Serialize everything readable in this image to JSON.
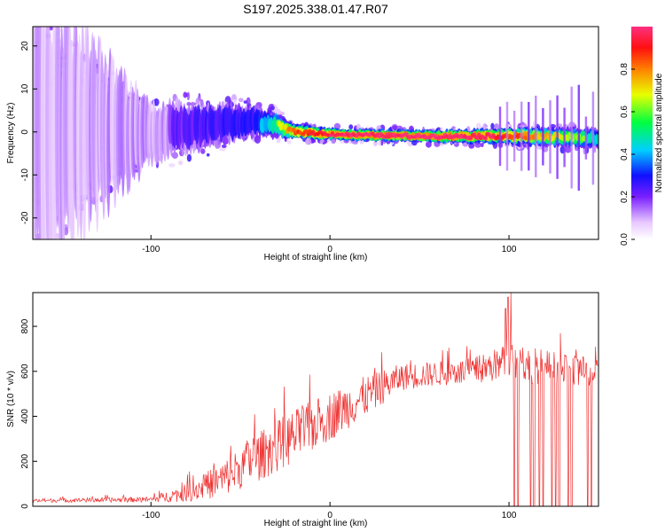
{
  "title": "S197.2025.338.01.47.R07",
  "colors": {
    "snr_line": "#ee3030",
    "axis": "#000000"
  },
  "chart_data": [
    {
      "type": "heatmap",
      "xlabel": "Height of straight line (km)",
      "ylabel": "Frequency (Hz)",
      "xlim": [
        -166,
        150
      ],
      "ylim": [
        -25,
        24.5
      ],
      "xticks": [
        -100,
        0,
        100
      ],
      "xtick_labels": [
        "-100",
        "0",
        "100"
      ],
      "yticks": [
        -20,
        -10,
        0,
        10,
        20
      ],
      "ytick_labels": [
        "-20",
        "-10",
        "0",
        "10",
        "20"
      ],
      "colorbar": {
        "label": "Normalized spectral amplitude",
        "range": [
          0.0,
          1.0
        ],
        "ticks": [
          0.0,
          0.2,
          0.4,
          0.6,
          0.8
        ],
        "tick_labels": [
          "0.0",
          "0.2",
          "0.4",
          "0.6",
          "0.8"
        ]
      },
      "ridge": [
        {
          "x": -166,
          "f": 0.0,
          "width": 30,
          "amp": 0.28
        },
        {
          "x": -100,
          "f": 0.0,
          "width": 6,
          "amp": 0.32
        },
        {
          "x": -80,
          "f": 1.0,
          "width": 5,
          "amp": 0.4
        },
        {
          "x": -60,
          "f": 2.0,
          "width": 4,
          "amp": 0.45
        },
        {
          "x": -40,
          "f": 2.5,
          "width": 3,
          "amp": 0.5
        },
        {
          "x": -30,
          "f": 1.5,
          "width": 2.5,
          "amp": 0.6
        },
        {
          "x": -20,
          "f": 0.0,
          "width": 1.5,
          "amp": 0.85
        },
        {
          "x": 0,
          "f": -0.5,
          "width": 1.2,
          "amp": 0.95
        },
        {
          "x": 50,
          "f": -1.0,
          "width": 1.2,
          "amp": 1.0
        },
        {
          "x": 90,
          "f": -1.0,
          "width": 1.5,
          "amp": 0.95
        },
        {
          "x": 110,
          "f": -1.0,
          "width": 1.8,
          "amp": 0.8
        },
        {
          "x": 150,
          "f": -1.5,
          "width": 2.0,
          "amp": 0.55
        }
      ]
    },
    {
      "type": "line",
      "xlabel": "Height of straight line (km)",
      "ylabel": "SNR (10 * v/v)",
      "xlim": [
        -166,
        150
      ],
      "ylim": [
        0,
        950
      ],
      "xticks": [
        -100,
        0,
        100
      ],
      "xtick_labels": [
        "-100",
        "0",
        "100"
      ],
      "yticks": [
        0,
        200,
        400,
        600,
        800
      ],
      "ytick_labels": [
        "0",
        "200",
        "400",
        "600",
        "800"
      ],
      "envelope": [
        {
          "x": -166,
          "mean": 25,
          "noise": 8
        },
        {
          "x": -100,
          "mean": 30,
          "noise": 12
        },
        {
          "x": -80,
          "mean": 60,
          "noise": 40
        },
        {
          "x": -60,
          "mean": 120,
          "noise": 80
        },
        {
          "x": -40,
          "mean": 220,
          "noise": 110
        },
        {
          "x": -20,
          "mean": 310,
          "noise": 120
        },
        {
          "x": 0,
          "mean": 400,
          "noise": 110
        },
        {
          "x": 20,
          "mean": 490,
          "noise": 90
        },
        {
          "x": 40,
          "mean": 575,
          "noise": 60
        },
        {
          "x": 60,
          "mean": 590,
          "noise": 55
        },
        {
          "x": 80,
          "mean": 600,
          "noise": 60
        },
        {
          "x": 95,
          "mean": 630,
          "noise": 80
        },
        {
          "x": 100,
          "mean": 640,
          "noise": 90
        },
        {
          "x": 150,
          "mean": 590,
          "noise": 60
        }
      ],
      "dropouts": [
        103,
        105,
        112,
        114,
        117,
        119,
        124,
        126,
        128,
        133,
        135,
        144,
        146
      ],
      "peaks": [
        {
          "x": 98,
          "y": 880
        },
        {
          "x": 99.5,
          "y": 930
        },
        {
          "x": 101,
          "y": 950
        }
      ]
    }
  ]
}
